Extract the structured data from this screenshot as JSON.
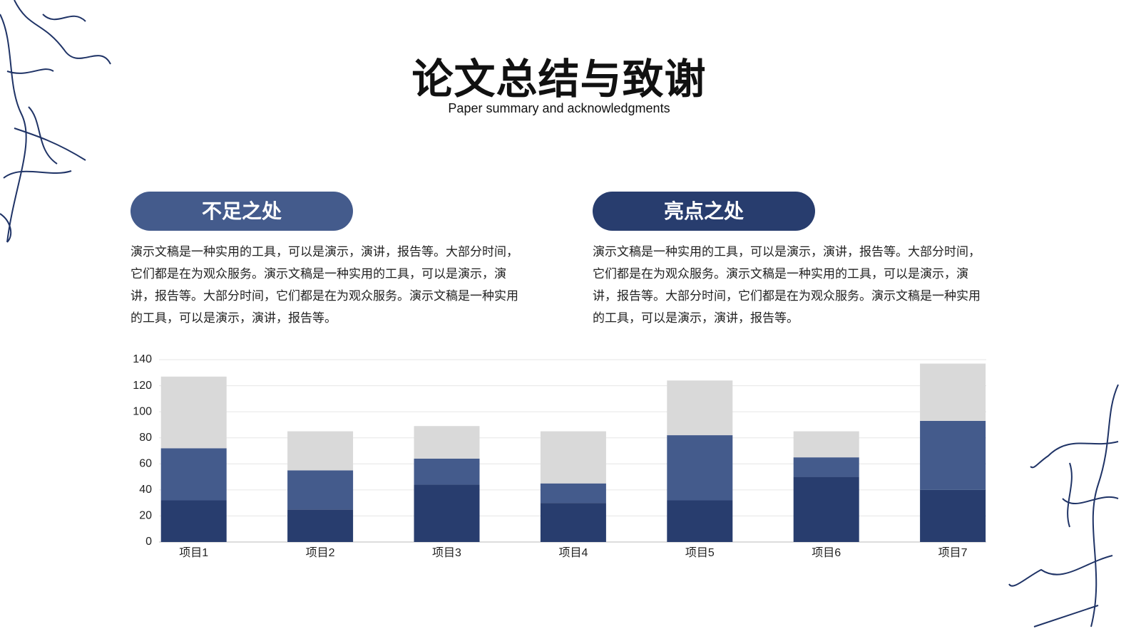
{
  "title": "论文总结与致谢",
  "subtitle": "Paper summary and acknowledgments",
  "sections": [
    {
      "heading": "不足之处",
      "text": "演示文稿是一种实用的工具，可以是演示，演讲，报告等。大部分时间，它们都是在为观众服务。演示文稿是一种实用的工具，可以是演示，演讲，报告等。大部分时间，它们都是在为观众服务。演示文稿是一种实用的工具，可以是演示，演讲，报告等。"
    },
    {
      "heading": "亮点之处",
      "text": "演示文稿是一种实用的工具，可以是演示，演讲，报告等。大部分时间，它们都是在为观众服务。演示文稿是一种实用的工具，可以是演示，演讲，报告等。大部分时间，它们都是在为观众服务。演示文稿是一种实用的工具，可以是演示，演讲，报告等。"
    }
  ],
  "chart_data": {
    "type": "stacked_bar",
    "categories": [
      "项目1",
      "项目2",
      "项目3",
      "项目4",
      "项目5",
      "项目6",
      "项目7"
    ],
    "series": [
      {
        "color": "#283d6e",
        "values": [
          32,
          25,
          44,
          30,
          32,
          50,
          40
        ]
      },
      {
        "color": "#445b8c",
        "values": [
          40,
          30,
          20,
          15,
          50,
          15,
          53
        ]
      },
      {
        "color": "#d9d9d9",
        "values": [
          55,
          30,
          25,
          40,
          42,
          20,
          44
        ]
      }
    ],
    "ylim": [
      0,
      140
    ],
    "yticks": [
      0,
      20,
      40,
      60,
      80,
      100,
      120,
      140
    ],
    "grid": true
  }
}
